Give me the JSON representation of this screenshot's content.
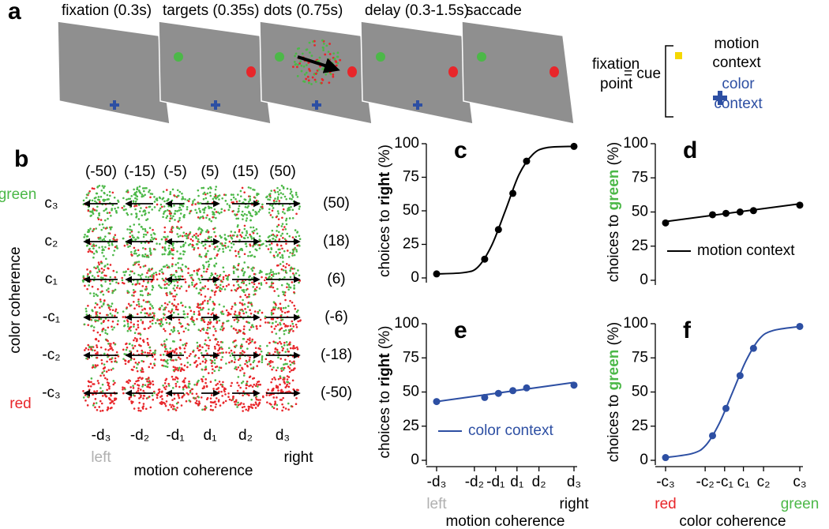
{
  "panel_a": {
    "label": "a",
    "epochs": [
      "fixation (0.3s)",
      "targets (0.35s)",
      "dots (0.75s)",
      "delay (0.3-1.5s)",
      "saccade"
    ],
    "cue": {
      "left": [
        "fixation",
        "point"
      ],
      "equals": "= cue",
      "motion": [
        "motion",
        "context"
      ],
      "color": [
        "color",
        "context"
      ]
    }
  },
  "panel_b": {
    "label": "b",
    "motion_coherence": [
      "(-50)",
      "(-15)",
      "(-5)",
      "(5)",
      "(15)",
      "(50)"
    ],
    "color_coherence": [
      "(50)",
      "(18)",
      "(6)",
      "(-6)",
      "(-18)",
      "(-50)"
    ],
    "rows": [
      "c₃",
      "c₂",
      "c₁",
      "-c₁",
      "-c₂",
      "-c₃"
    ],
    "columns": [
      "-d₃",
      "-d₂",
      "-d₁",
      "d₁",
      "d₂",
      "d₃"
    ],
    "top_color": "green",
    "bottom_color": "red",
    "left": "left",
    "right": "right",
    "x_label": "motion coherence",
    "y_label": "color coherence"
  },
  "chart_data": [
    {
      "type": "scatter",
      "label": "c",
      "y_label": [
        "choices to ",
        "right",
        " (%)"
      ],
      "y_label_emph_color": "#000000",
      "ylim": [
        0,
        100
      ],
      "yticks": [
        0,
        25,
        50,
        75,
        100
      ],
      "xlim": [
        -1,
        1
      ],
      "x": [
        -1,
        -0.3,
        -0.1,
        0.11,
        0.31,
        1
      ],
      "series": [
        {
          "color": "#000000",
          "values": [
            3,
            14,
            36,
            63,
            87,
            98
          ],
          "fit": {
            "x": [
              -1,
              -0.6,
              -0.4,
              -0.2,
              0,
              0.2,
              0.4,
              0.6,
              1
            ],
            "values": [
              3,
              4,
              8,
              24,
              50,
              77,
              92,
              97,
              98
            ]
          }
        }
      ]
    },
    {
      "type": "scatter",
      "label": "d",
      "y_label": [
        "choices to ",
        "green",
        " (%)"
      ],
      "y_label_emph_color": "#4cb848",
      "ylim": [
        0,
        100
      ],
      "yticks": [
        0,
        25,
        50,
        75,
        100
      ],
      "xlim": [
        -1,
        1
      ],
      "x": [
        -1,
        -0.3,
        -0.1,
        0.11,
        0.31,
        1
      ],
      "legend": "lower left",
      "series": [
        {
          "name": "motion context",
          "color": "#000000",
          "values": [
            42,
            48,
            49,
            50,
            51,
            55
          ],
          "fit": {
            "x": [
              -1,
              1
            ],
            "values": [
              43,
              56
            ]
          }
        }
      ]
    },
    {
      "type": "scatter",
      "label": "e",
      "y_label": [
        "choices to ",
        "right",
        " (%)"
      ],
      "y_label_emph_color": "#000000",
      "ylim": [
        0,
        100
      ],
      "yticks": [
        0,
        25,
        50,
        75,
        100
      ],
      "xlim": [
        -1,
        1
      ],
      "xticks": [
        {
          "value": -1,
          "label": "-d₃"
        },
        {
          "value": -0.45,
          "label": "-d₂"
        },
        {
          "value": -0.14,
          "label": "-d₁"
        },
        {
          "value": 0.17,
          "label": "d₁"
        },
        {
          "value": 0.49,
          "label": "d₂"
        },
        {
          "value": 1,
          "label": "d₃"
        }
      ],
      "x_end_labels": [
        "left",
        "right"
      ],
      "x_end_colors": [
        "#b0b0b0",
        "#000000"
      ],
      "x_label": "motion coherence",
      "x": [
        -1,
        -0.3,
        -0.1,
        0.11,
        0.31,
        1
      ],
      "legend": "lower left",
      "series": [
        {
          "name": "color context",
          "color": "#2d4fa3",
          "values": [
            43,
            46,
            49,
            51,
            53,
            55
          ],
          "fit": {
            "x": [
              -1,
              1
            ],
            "values": [
              43,
              57
            ]
          }
        }
      ]
    },
    {
      "type": "scatter",
      "label": "f",
      "y_label": [
        "choices to ",
        "green",
        " (%)"
      ],
      "y_label_emph_color": "#4cb848",
      "ylim": [
        0,
        100
      ],
      "yticks": [
        0,
        25,
        50,
        75,
        100
      ],
      "xlim": [
        -1,
        1
      ],
      "xticks": [
        {
          "value": -1,
          "label": "-c₃"
        },
        {
          "value": -0.41,
          "label": "-c₂"
        },
        {
          "value": -0.12,
          "label": "-c₁"
        },
        {
          "value": 0.16,
          "label": "c₁"
        },
        {
          "value": 0.46,
          "label": "c₂"
        },
        {
          "value": 1,
          "label": "c₃"
        }
      ],
      "x_end_labels": [
        "red",
        "green"
      ],
      "x_end_colors": [
        "#e8262a",
        "#4cb848"
      ],
      "x_label": "color coherence",
      "x": [
        -1,
        -0.3,
        -0.1,
        0.11,
        0.31,
        1
      ],
      "series": [
        {
          "color": "#2d4fa3",
          "values": [
            2,
            18,
            38,
            62,
            82,
            98
          ],
          "fit": {
            "x": [
              -1,
              -0.6,
              -0.4,
              -0.2,
              0,
              0.2,
              0.4,
              0.6,
              1
            ],
            "values": [
              2,
              5,
              11,
              27,
              50,
              73,
              89,
              95,
              98
            ]
          }
        }
      ]
    }
  ]
}
